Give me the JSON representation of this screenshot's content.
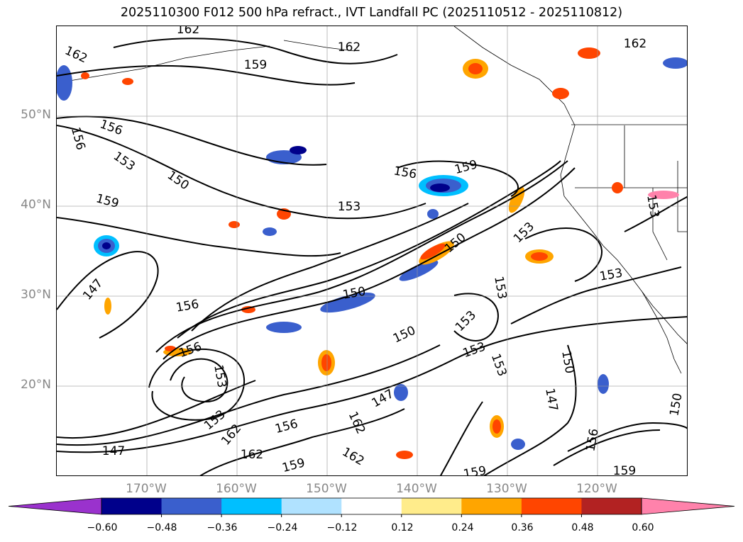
{
  "title": "2025110300 F012 500 hPa refract., IVT Landfall PC (2025110512 - 2025110812)",
  "map": {
    "projection": "plate-carree",
    "lon_range": [
      -180,
      -110
    ],
    "lat_range": [
      10,
      60
    ],
    "gridlines": true,
    "lat_labels": [
      "50°N",
      "40°N",
      "30°N",
      "20°N"
    ],
    "lon_labels": [
      "170°W",
      "160°W",
      "150°W",
      "140°W",
      "130°W",
      "120°W"
    ],
    "contour_labels": [
      "162",
      "162",
      "159",
      "162",
      "156",
      "156",
      "153",
      "150",
      "159",
      "156",
      "159",
      "153",
      "153",
      "150",
      "147",
      "156",
      "150",
      "153",
      "153",
      "150",
      "153",
      "153",
      "156",
      "153",
      "147",
      "153",
      "156",
      "162",
      "162",
      "159",
      "162",
      "162",
      "159",
      "147",
      "150",
      "147",
      "156",
      "159",
      "162",
      "153"
    ]
  },
  "colorbar": {
    "extend": "both",
    "colors": [
      "#9a32cd",
      "#00008b",
      "#3a5fcd",
      "#00bfff",
      "#b0e2ff",
      "#ffffff",
      "#ffec8b",
      "#ffa500",
      "#ff4500",
      "#b22222",
      "#ff82ab"
    ],
    "ticks": [
      "−0.60",
      "−0.48",
      "−0.36",
      "−0.24",
      "−0.12",
      "0.12",
      "0.24",
      "0.36",
      "0.48",
      "0.60"
    ]
  }
}
